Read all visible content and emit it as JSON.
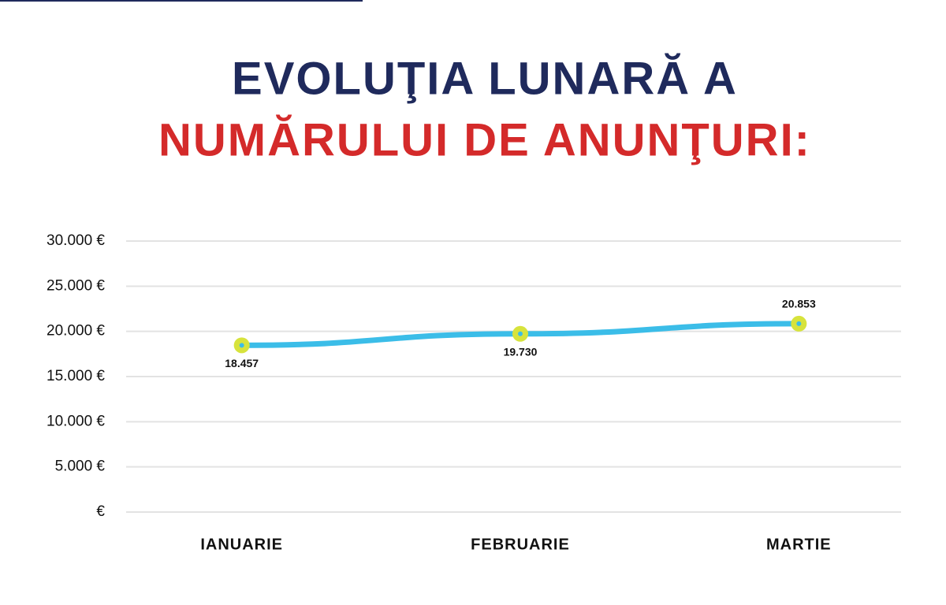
{
  "chart_data": {
    "type": "line",
    "title": [
      "EVOLUŢIA LUNARĂ A",
      "NUMĂRULUI DE ANUNŢURI:"
    ],
    "categories": [
      "IANUARIE",
      "FEBRUARIE",
      "MARTIE"
    ],
    "series": [
      {
        "color": "#3bbde8",
        "marker_color": "#d7e33c",
        "values": [
          18457,
          19730,
          20853
        ],
        "value_labels": [
          "18.457",
          "19.730",
          "20.853"
        ]
      }
    ],
    "ylim": [
      0,
      30000
    ],
    "yticks": [
      {
        "value": 0,
        "label": "€"
      },
      {
        "value": 5000,
        "label": "5.000 €"
      },
      {
        "value": 10000,
        "label": "10.000 €"
      },
      {
        "value": 15000,
        "label": "15.000 €"
      },
      {
        "value": 20000,
        "label": "20.000 €"
      },
      {
        "value": 25000,
        "label": "25.000 €"
      },
      {
        "value": 30000,
        "label": "30.000 €"
      }
    ],
    "grid": true
  }
}
